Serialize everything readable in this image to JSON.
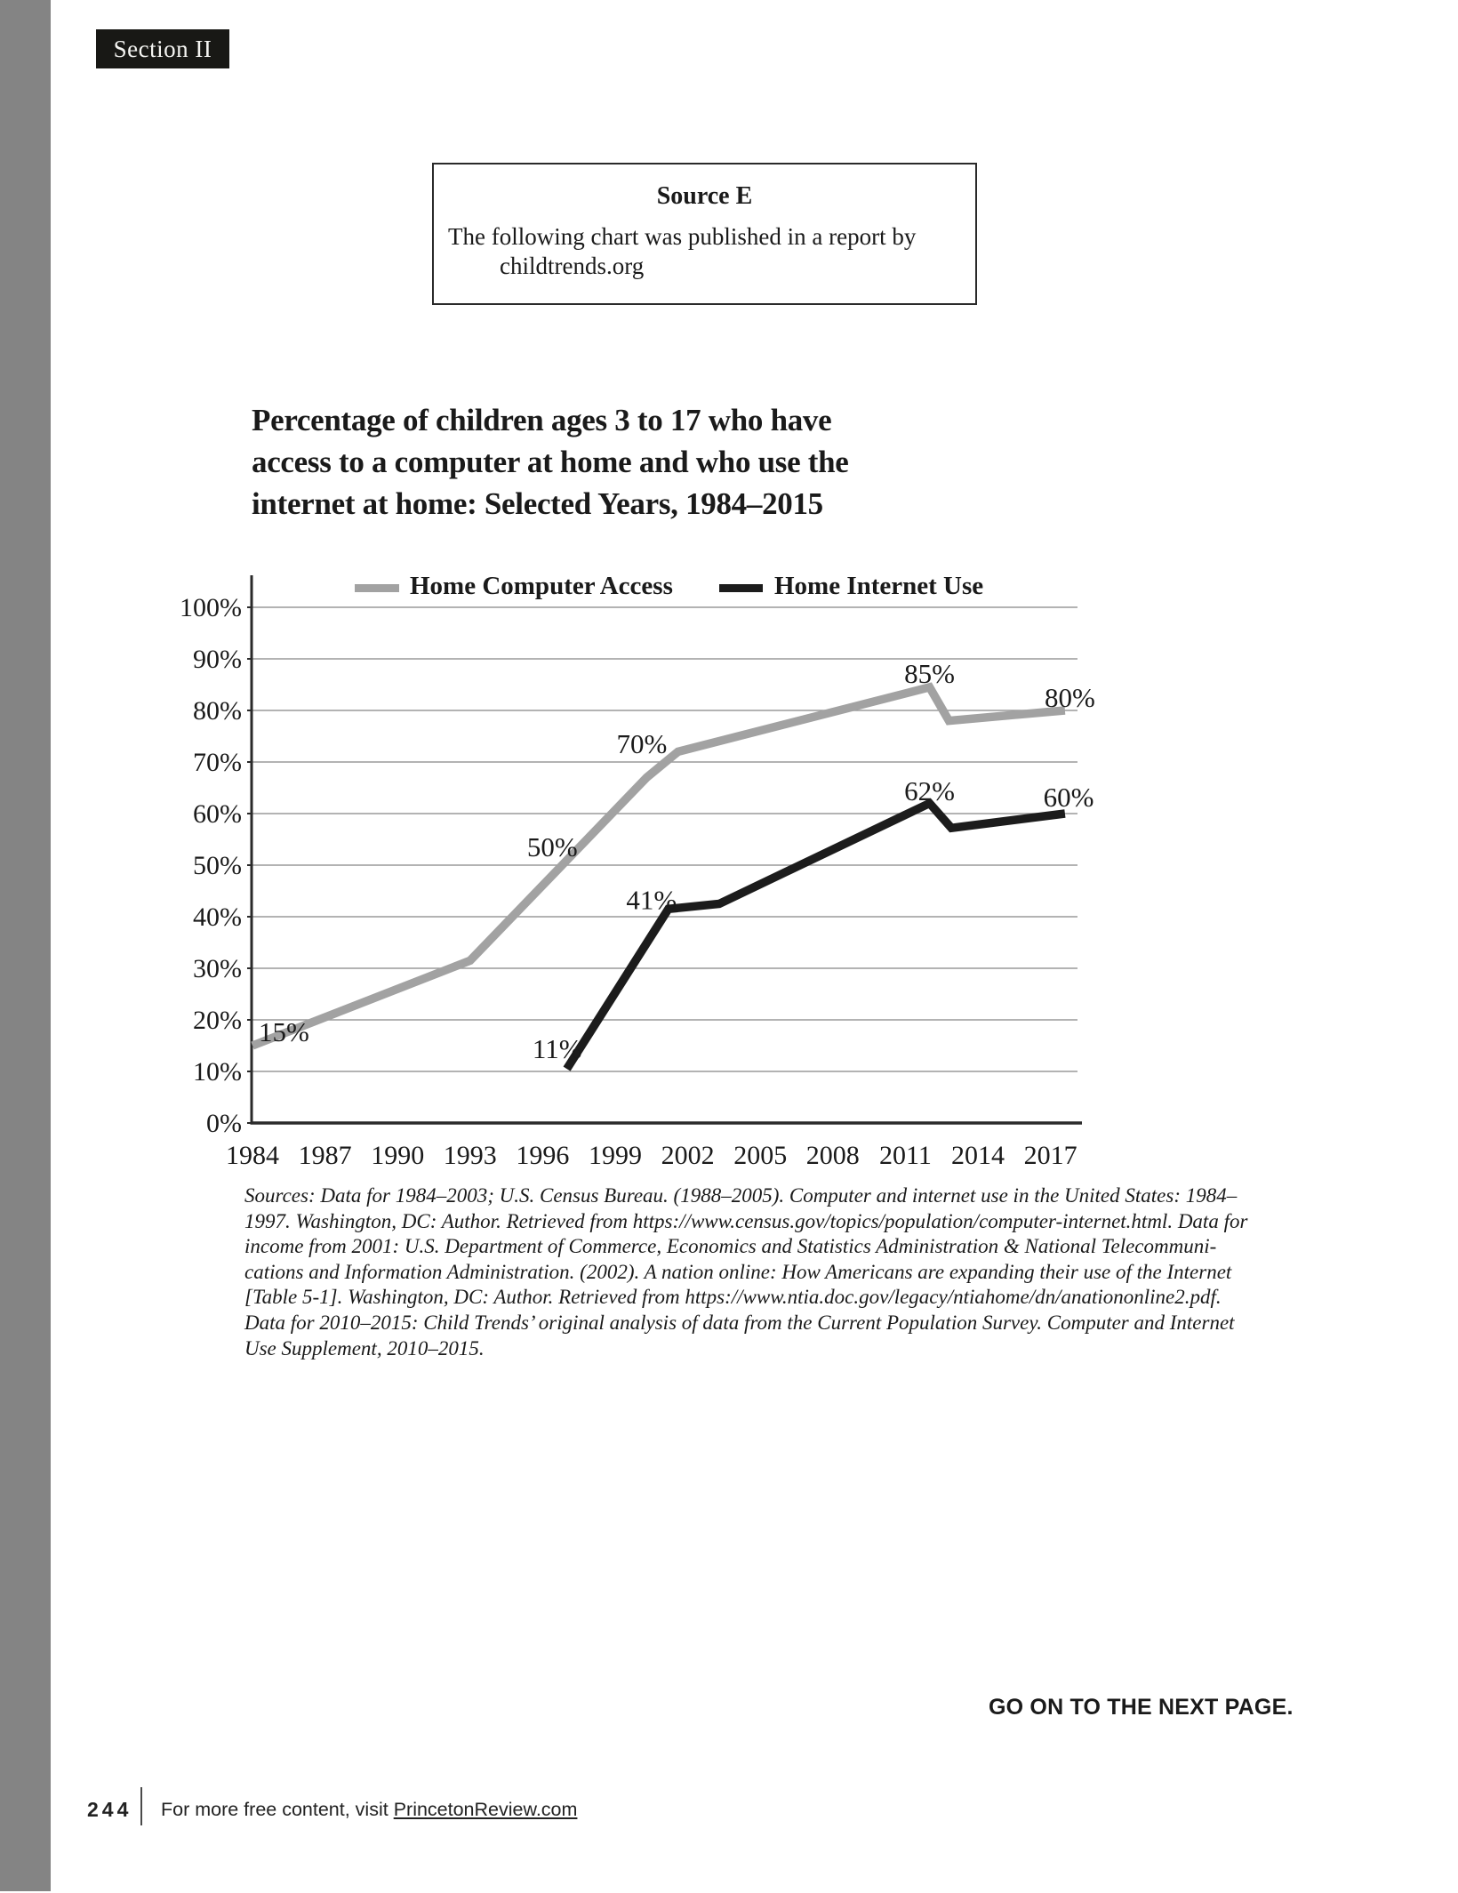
{
  "page": {
    "section_label": "Section II",
    "go_on_text": "GO ON TO THE NEXT PAGE.",
    "footer": {
      "page_number": "244",
      "text_prefix": "For more free content, visit ",
      "link_text": "PrincetonReview.com"
    }
  },
  "source_box": {
    "heading": "Source E",
    "line1": "The following chart was published in a report by",
    "line2": "childtrends.org"
  },
  "chart_data": {
    "type": "line",
    "title_lines": [
      "Percentage of children ages 3 to 17 who have",
      "access to a computer at home and who use the",
      "internet at home: Selected Years, 1984–2015"
    ],
    "legend": [
      {
        "label": "Home Computer Access",
        "color": "#a2a2a2"
      },
      {
        "label": "Home Internet Use",
        "color": "#1c1c1c"
      }
    ],
    "ylim": [
      0,
      100
    ],
    "grid": true,
    "y_ticks": [
      {
        "label": "100%",
        "value": 100
      },
      {
        "label": "90%",
        "value": 90
      },
      {
        "label": "80%",
        "value": 80
      },
      {
        "label": "70%",
        "value": 70
      },
      {
        "label": "60%",
        "value": 60
      },
      {
        "label": "50%",
        "value": 50
      },
      {
        "label": "40%",
        "value": 40
      },
      {
        "label": "30%",
        "value": 30
      },
      {
        "label": "20%",
        "value": 20
      },
      {
        "label": "10%",
        "value": 10
      },
      {
        "label": "0%",
        "value": 0
      }
    ],
    "x_ticks": [
      {
        "label": "1984",
        "value": 1984
      },
      {
        "label": "1987",
        "value": 1987
      },
      {
        "label": "1990",
        "value": 1990
      },
      {
        "label": "1993",
        "value": 1993
      },
      {
        "label": "1996",
        "value": 1996
      },
      {
        "label": "1999",
        "value": 1999
      },
      {
        "label": "2002",
        "value": 2002
      },
      {
        "label": "2005",
        "value": 2005
      },
      {
        "label": "2008",
        "value": 2008
      },
      {
        "label": "2011",
        "value": 2011
      },
      {
        "label": "2014",
        "value": 2014
      },
      {
        "label": "2017",
        "value": 2017
      }
    ],
    "series": [
      {
        "name": "Home Computer Access",
        "color": "#a2a2a2",
        "points": [
          [
            1984,
            15
          ],
          [
            1993,
            31.5
          ],
          [
            2000.3,
            67
          ],
          [
            2001.6,
            72
          ],
          [
            2012,
            84.5
          ],
          [
            2012.8,
            78
          ],
          [
            2017.6,
            80
          ]
        ]
      },
      {
        "name": "Home Internet Use",
        "color": "#1c1c1c",
        "points": [
          [
            1997,
            10.5
          ],
          [
            2001.2,
            41.5
          ],
          [
            2003.3,
            42.5
          ],
          [
            2012,
            62
          ],
          [
            2012.9,
            57.2
          ],
          [
            2017.6,
            60
          ]
        ]
      }
    ],
    "point_labels": [
      {
        "text": "15%",
        "year": 1985.3,
        "pct": 17.8
      },
      {
        "text": "50%",
        "year": 1996.4,
        "pct": 53.6
      },
      {
        "text": "70%",
        "year": 2000.1,
        "pct": 73.6
      },
      {
        "text": "85%",
        "year": 2012.0,
        "pct": 87.2
      },
      {
        "text": "80%",
        "year": 2017.8,
        "pct": 82.6
      },
      {
        "text": "11%",
        "year": 1996.6,
        "pct": 14.5
      },
      {
        "text": "41%",
        "year": 2000.5,
        "pct": 43.4
      },
      {
        "text": "62%",
        "year": 2012.0,
        "pct": 64.5
      },
      {
        "text": "60%",
        "year": 2017.75,
        "pct": 63.3
      }
    ]
  },
  "sources_note": {
    "lines": [
      "Sources: Data for 1984–2003; U.S. Census Bureau. (1988–2005). Computer and internet use in the United States: 1984–",
      "1997. Washington, DC: Author. Retrieved from https://www.census.gov/topics/population/computer-internet.html. Data for",
      "income from 2001: U.S. Department of Commerce, Economics and Statistics Administration & National Telecommuni-",
      "cations and Information Administration. (2002). A nation online: How Americans are expanding their use of the Internet",
      "[Table 5-1]. Washington, DC: Author. Retrieved from https://www.ntia.doc.gov/legacy/ntiahome/dn/anationonline2.pdf.",
      "Data for 2010–2015: Child Trends’ original analysis of data from the Current Population Survey. Computer and Internet",
      "Use Supplement, 2010–2015."
    ]
  }
}
